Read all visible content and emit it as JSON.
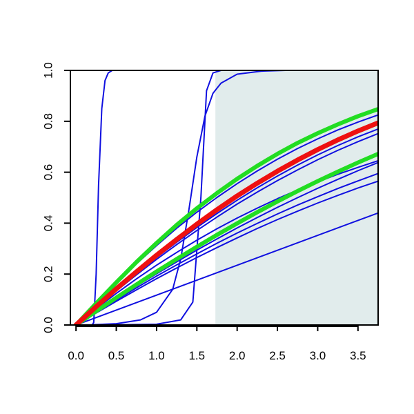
{
  "chart_data": {
    "type": "line",
    "title": "",
    "xlabel": "",
    "ylabel": "",
    "xlim": [
      -0.07,
      3.75
    ],
    "ylim": [
      0,
      1
    ],
    "grid": false,
    "x_ticks": [
      0.0,
      0.5,
      1.0,
      1.5,
      2.0,
      2.5,
      3.0,
      3.5
    ],
    "x_tick_labels": [
      "0.0",
      "0.5",
      "1.0",
      "1.5",
      "2.0",
      "2.5",
      "3.0",
      "3.5"
    ],
    "y_ticks": [
      0.0,
      0.2,
      0.4,
      0.6,
      0.8,
      1.0
    ],
    "y_tick_labels": [
      "0.0",
      "0.2",
      "0.4",
      "0.6",
      "0.8",
      "1.0"
    ],
    "shaded_region": {
      "x": [
        1.73,
        3.75
      ],
      "y": [
        0,
        1
      ],
      "color": "#e1ecec"
    },
    "colors": {
      "blue": "#1010e0",
      "red": "#ee1010",
      "green": "#22dd22"
    },
    "series": [
      {
        "color": "blue",
        "width": 2,
        "x": [
          0,
          0.2,
          0.22,
          0.25,
          0.28,
          0.32,
          0.36,
          0.4,
          0.45,
          0.5,
          3.75
        ],
        "y": [
          0,
          0,
          0.01,
          0.2,
          0.55,
          0.85,
          0.96,
          0.99,
          1,
          1,
          1
        ]
      },
      {
        "color": "blue",
        "width": 2,
        "x": [
          0,
          0.3,
          1.0,
          1.3,
          1.45,
          1.55,
          1.62,
          1.7,
          1.8,
          2.2,
          3.75
        ],
        "y": [
          0,
          0,
          0.003,
          0.02,
          0.09,
          0.5,
          0.92,
          0.99,
          1,
          1,
          1
        ]
      },
      {
        "color": "blue",
        "width": 2,
        "x": [
          0,
          0.2,
          0.5,
          0.8,
          1.0,
          1.2,
          1.3,
          1.4,
          1.5,
          1.6,
          1.7,
          1.8,
          2.0,
          2.3,
          2.6,
          3.0,
          3.75
        ],
        "y": [
          0,
          0.001,
          0.005,
          0.02,
          0.05,
          0.14,
          0.26,
          0.45,
          0.66,
          0.82,
          0.91,
          0.95,
          0.985,
          0.997,
          1,
          1,
          1
        ]
      },
      {
        "color": "blue",
        "width": 2,
        "x": [
          0,
          0.25,
          0.5,
          0.75,
          1.0,
          1.25,
          1.5,
          1.75,
          2.0,
          2.25,
          2.5,
          2.75,
          3.0,
          3.25,
          3.5,
          3.75
        ],
        "y": [
          0,
          0.083,
          0.163,
          0.24,
          0.312,
          0.38,
          0.443,
          0.501,
          0.555,
          0.605,
          0.651,
          0.693,
          0.731,
          0.766,
          0.797,
          0.825
        ]
      },
      {
        "color": "blue",
        "width": 2,
        "x": [
          0,
          0.25,
          0.5,
          0.75,
          1.0,
          1.25,
          1.5,
          1.75,
          2.0,
          2.25,
          2.5,
          2.75,
          3.0,
          3.25,
          3.5,
          3.75
        ],
        "y": [
          0,
          0.07,
          0.137,
          0.202,
          0.265,
          0.325,
          0.383,
          0.438,
          0.49,
          0.539,
          0.585,
          0.628,
          0.668,
          0.705,
          0.739,
          0.77
        ]
      },
      {
        "color": "blue",
        "width": 2,
        "x": [
          0,
          0.25,
          0.5,
          0.75,
          1.0,
          1.25,
          1.5,
          1.75,
          2.0,
          2.25,
          2.5,
          2.75,
          3.0,
          3.25,
          3.5,
          3.75
        ],
        "y": [
          0,
          0.068,
          0.134,
          0.197,
          0.258,
          0.316,
          0.371,
          0.424,
          0.475,
          0.522,
          0.567,
          0.609,
          0.649,
          0.686,
          0.72,
          0.752
        ]
      },
      {
        "color": "blue",
        "width": 2,
        "x": [
          0,
          0.25,
          0.5,
          0.75,
          1.0,
          1.25,
          1.5,
          1.75,
          2.0,
          2.25,
          2.5,
          2.75,
          3.0,
          3.25,
          3.5,
          3.75
        ],
        "y": [
          0,
          0.064,
          0.124,
          0.181,
          0.235,
          0.285,
          0.333,
          0.378,
          0.42,
          0.459,
          0.496,
          0.53,
          0.562,
          0.592,
          0.619,
          0.645
        ]
      },
      {
        "color": "blue",
        "width": 2,
        "x": [
          0,
          0.25,
          0.5,
          0.75,
          1.0,
          1.25,
          1.5,
          1.75,
          2.0,
          2.25,
          2.5,
          2.75,
          3.0,
          3.25,
          3.5,
          3.75
        ],
        "y": [
          0,
          0.052,
          0.103,
          0.153,
          0.201,
          0.248,
          0.294,
          0.338,
          0.381,
          0.422,
          0.462,
          0.5,
          0.537,
          0.572,
          0.606,
          0.638
        ]
      },
      {
        "color": "blue",
        "width": 2,
        "x": [
          0,
          0.25,
          0.5,
          0.75,
          1.0,
          1.25,
          1.5,
          1.75,
          2.0,
          2.25,
          2.5,
          2.75,
          3.0,
          3.25,
          3.5,
          3.75
        ],
        "y": [
          0,
          0.05,
          0.098,
          0.146,
          0.192,
          0.236,
          0.279,
          0.321,
          0.361,
          0.399,
          0.436,
          0.471,
          0.504,
          0.536,
          0.566,
          0.595
        ]
      },
      {
        "color": "blue",
        "width": 2,
        "x": [
          0,
          0.25,
          0.5,
          0.75,
          1.0,
          1.25,
          1.5,
          1.75,
          2.0,
          2.25,
          2.5,
          2.75,
          3.0,
          3.25,
          3.5,
          3.75
        ],
        "y": [
          0,
          0.047,
          0.093,
          0.138,
          0.182,
          0.224,
          0.265,
          0.304,
          0.342,
          0.379,
          0.414,
          0.447,
          0.479,
          0.509,
          0.538,
          0.565
        ]
      },
      {
        "color": "blue",
        "width": 2,
        "x": [
          0,
          3.75
        ],
        "y": [
          0,
          0.44
        ]
      },
      {
        "color": "green",
        "width": 6,
        "x": [
          0,
          0.25,
          0.5,
          0.75,
          1.0,
          1.25,
          1.5,
          1.75,
          2.0,
          2.25,
          2.5,
          2.75,
          3.0,
          3.25,
          3.5,
          3.75
        ],
        "y": [
          0,
          0.085,
          0.167,
          0.247,
          0.322,
          0.393,
          0.458,
          0.518,
          0.574,
          0.625,
          0.672,
          0.715,
          0.753,
          0.788,
          0.82,
          0.848
        ]
      },
      {
        "color": "green",
        "width": 6,
        "x": [
          0,
          0.25,
          0.5,
          0.75,
          1.0,
          1.25,
          1.5,
          1.75,
          2.0,
          2.25,
          2.5,
          2.75,
          3.0,
          3.25,
          3.5,
          3.75
        ],
        "y": [
          0,
          0.054,
          0.107,
          0.159,
          0.21,
          0.259,
          0.307,
          0.354,
          0.399,
          0.443,
          0.485,
          0.526,
          0.565,
          0.602,
          0.638,
          0.672
        ]
      },
      {
        "color": "red",
        "width": 7,
        "x": [
          0,
          0.25,
          0.5,
          0.75,
          1.0,
          1.25,
          1.5,
          1.75,
          2.0,
          2.25,
          2.5,
          2.75,
          3.0,
          3.25,
          3.5,
          3.75
        ],
        "y": [
          0,
          0.072,
          0.142,
          0.209,
          0.274,
          0.336,
          0.396,
          0.453,
          0.507,
          0.557,
          0.604,
          0.648,
          0.689,
          0.727,
          0.762,
          0.794
        ]
      }
    ]
  }
}
